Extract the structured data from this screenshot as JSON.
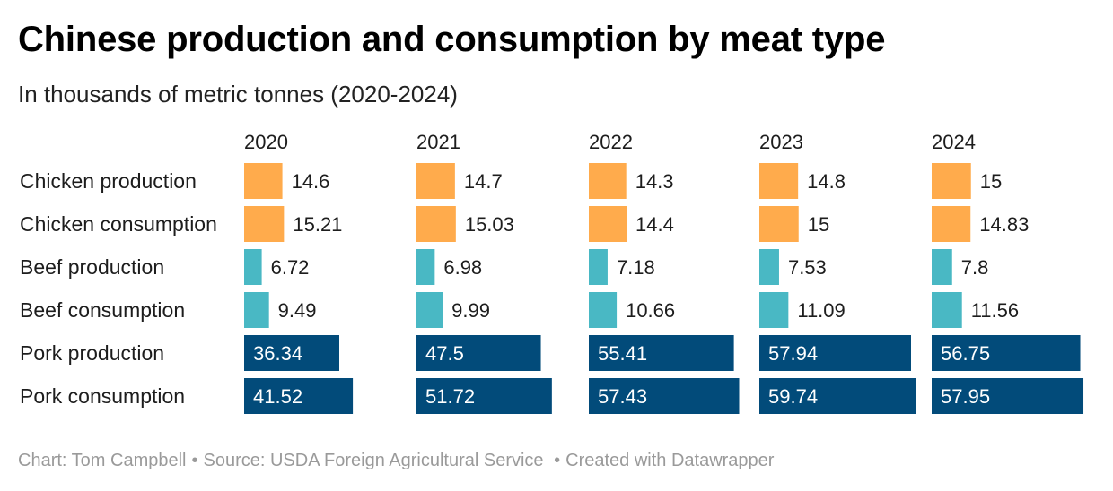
{
  "title": "Chinese production and consumption by meat type",
  "subtitle": "In thousands of metric tonnes (2020-2024)",
  "footer": {
    "credit": "Chart: Tom Campbell",
    "source": "Source: USDA Foreign Agricultural Service",
    "created": "Created with Datawrapper"
  },
  "colors": {
    "chicken": "#ffab4c",
    "beef": "#49b8c4",
    "pork": "#024b7a",
    "label_dark": "#1d1d1d",
    "label_light": "#ffffff"
  },
  "chart_data": {
    "type": "bar",
    "layout": "small-multiples",
    "columns": [
      "2020",
      "2021",
      "2022",
      "2023",
      "2024"
    ],
    "categories": [
      "Chicken production",
      "Chicken consumption",
      "Beef production",
      "Beef consumption",
      "Pork production",
      "Pork consumption"
    ],
    "series": [
      {
        "name": "2020",
        "values": [
          14.6,
          15.21,
          6.72,
          9.49,
          36.34,
          41.52
        ]
      },
      {
        "name": "2021",
        "values": [
          14.7,
          15.03,
          6.98,
          9.99,
          47.5,
          51.72
        ]
      },
      {
        "name": "2022",
        "values": [
          14.3,
          14.4,
          7.18,
          10.66,
          55.41,
          57.43
        ]
      },
      {
        "name": "2023",
        "values": [
          14.8,
          15,
          7.53,
          11.09,
          57.94,
          59.74
        ]
      },
      {
        "name": "2024",
        "values": [
          15,
          14.83,
          7.8,
          11.56,
          56.75,
          57.95
        ]
      }
    ],
    "labels": [
      [
        "14.6",
        "15.21",
        "6.72",
        "9.49",
        "36.34",
        "41.52"
      ],
      [
        "14.7",
        "15.03",
        "6.98",
        "9.99",
        "47.5",
        "51.72"
      ],
      [
        "14.3",
        "14.4",
        "7.18",
        "10.66",
        "55.41",
        "57.43"
      ],
      [
        "14.8",
        "15",
        "7.53",
        "11.09",
        "57.94",
        "59.74"
      ],
      [
        "15",
        "14.83",
        "7.8",
        "11.56",
        "56.75",
        "57.95"
      ]
    ],
    "row_groups": [
      "chicken",
      "chicken",
      "beef",
      "beef",
      "pork",
      "pork"
    ],
    "xlim": [
      0,
      60
    ],
    "grid": false,
    "legend": "none"
  }
}
